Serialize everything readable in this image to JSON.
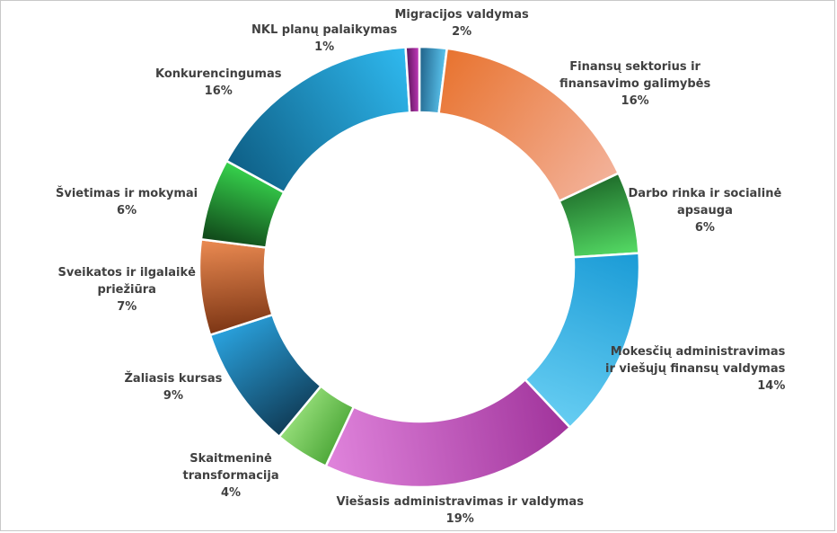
{
  "chart_data": {
    "type": "donut",
    "title": "",
    "slices": [
      {
        "label_lines": [
          "Migracijos valdymas"
        ],
        "value_label": "2%",
        "value": 2,
        "gradient": [
          "#1f5f86",
          "#5bc6f0"
        ]
      },
      {
        "label_lines": [
          "Finansų sektorius ir",
          "finansavimo galimybės"
        ],
        "value_label": "16%",
        "value": 16,
        "gradient": [
          "#e8732f",
          "#f3b29a"
        ]
      },
      {
        "label_lines": [
          "Darbo rinka ir socialinė",
          "apsauga"
        ],
        "value_label": "6%",
        "value": 6,
        "gradient": [
          "#1f6d2b",
          "#55dc65"
        ]
      },
      {
        "label_lines": [
          "Mokesčių administravimas",
          "ir viešųjų finansų valdymas"
        ],
        "value_label": "14%",
        "value": 14,
        "gradient": [
          "#1a9bd6",
          "#66cdf2"
        ]
      },
      {
        "label_lines": [
          "Viešasis administravimas  ir valdymas"
        ],
        "value_label": "19%",
        "value": 19,
        "gradient": [
          "#a0339b",
          "#e084dc"
        ]
      },
      {
        "label_lines": [
          "Skaitmeninė",
          "transformacija"
        ],
        "value_label": "4%",
        "value": 4,
        "gradient": [
          "#4fa93a",
          "#94dd78"
        ]
      },
      {
        "label_lines": [
          "Žaliasis kursas"
        ],
        "value_label": "9%",
        "value": 9,
        "gradient": [
          "#103c57",
          "#2aa3df"
        ]
      },
      {
        "label_lines": [
          "Sveikatos ir ilgalaikė",
          "priežiūra"
        ],
        "value_label": "7%",
        "value": 7,
        "gradient": [
          "#7c3514",
          "#ec8b52"
        ]
      },
      {
        "label_lines": [
          "Švietimas ir mokymai"
        ],
        "value_label": "6%",
        "value": 6,
        "gradient": [
          "#0f4418",
          "#37d44d"
        ]
      },
      {
        "label_lines": [
          "Konkurencingumas"
        ],
        "value_label": "16%",
        "value": 16,
        "gradient": [
          "#0e5f86",
          "#2fb9ef"
        ]
      },
      {
        "label_lines": [
          "NKL planų palaikymas"
        ],
        "value_label": "1%",
        "value": 1,
        "gradient": [
          "#5a1457",
          "#c93bc2"
        ]
      }
    ]
  }
}
